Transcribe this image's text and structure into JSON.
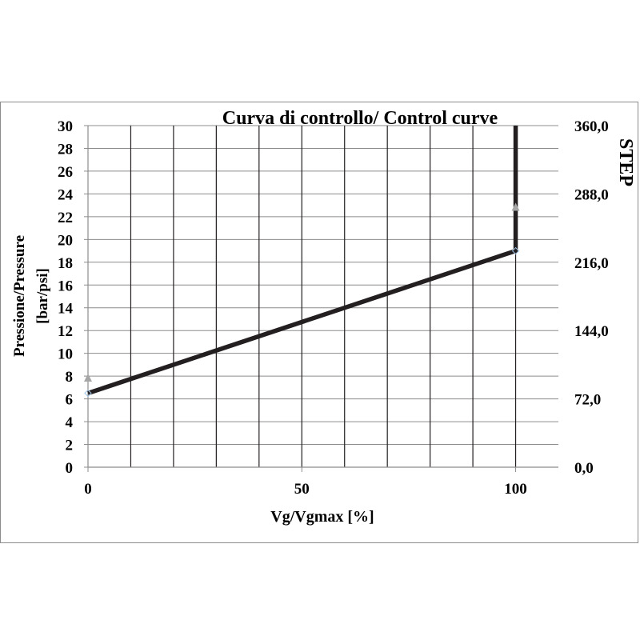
{
  "chart_data": {
    "type": "line",
    "title": "Curva di controllo/ Control curve",
    "xlabel": "Vg/Vgmax [%]",
    "ylabel_line1": "Pressione/Pressure",
    "ylabel_line2": "[bar/psi]",
    "y2label": "STEP",
    "xlim": [
      0,
      110
    ],
    "ylim": [
      0,
      30
    ],
    "y2lim": [
      0,
      360
    ],
    "x_ticks": [
      "0",
      "50",
      "100"
    ],
    "x_tick_values": [
      0,
      50,
      100
    ],
    "x_grid_values": [
      10,
      20,
      30,
      40,
      50,
      60,
      70,
      80,
      90,
      100
    ],
    "y_ticks": [
      "0",
      "2",
      "4",
      "6",
      "8",
      "10",
      "12",
      "14",
      "16",
      "18",
      "20",
      "22",
      "24",
      "26",
      "28",
      "30"
    ],
    "y_tick_values": [
      0,
      2,
      4,
      6,
      8,
      10,
      12,
      14,
      16,
      18,
      20,
      22,
      24,
      26,
      28,
      30
    ],
    "y2_ticks": [
      "0,0",
      "72,0",
      "144,0",
      "216,0",
      "288,0",
      "360,0"
    ],
    "y2_tick_values": [
      0,
      72,
      144,
      216,
      288,
      360
    ],
    "grid": true,
    "series": [
      {
        "x": [
          0,
          100,
          100
        ],
        "y": [
          6.5,
          19,
          30
        ],
        "color": "#231f20"
      }
    ],
    "markers": [
      {
        "shape": "triangle",
        "x": 0,
        "y": 7.8,
        "color": "#a6a6a6"
      },
      {
        "shape": "triangle",
        "x": 100,
        "y": 22.8,
        "color": "#a6a6a6"
      },
      {
        "shape": "diamond",
        "x": 0,
        "y": 6.5,
        "color": "#9dc3e6"
      },
      {
        "shape": "diamond",
        "x": 100,
        "y": 19,
        "color": "#9dc3e6"
      }
    ]
  }
}
